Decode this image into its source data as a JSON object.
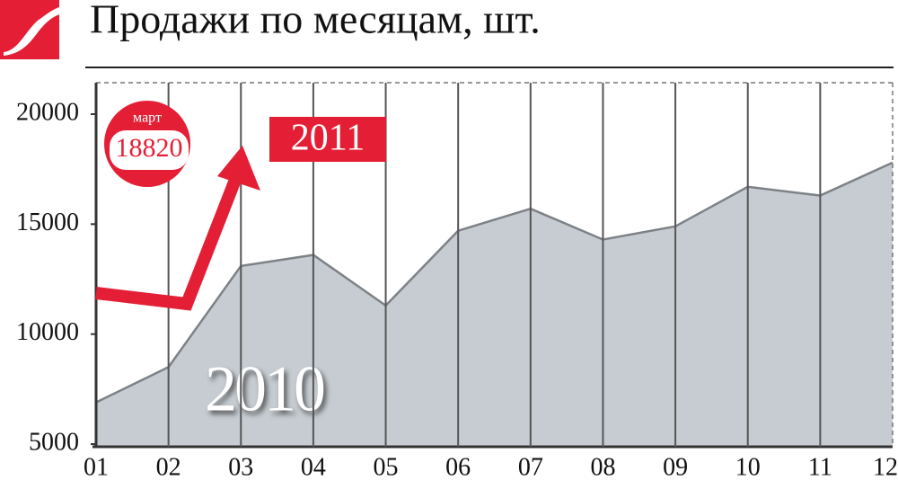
{
  "chart_data": {
    "type": "area",
    "title": "Продажи по месяцам, шт.",
    "categories": [
      "01",
      "02",
      "03",
      "04",
      "05",
      "06",
      "07",
      "08",
      "09",
      "10",
      "11",
      "12"
    ],
    "series": [
      {
        "name": "2010",
        "color": "#c6ccd1",
        "values": [
          6900,
          8500,
          13100,
          13600,
          11300,
          14700,
          15700,
          14300,
          14900,
          16700,
          16300,
          17800
        ]
      }
    ],
    "ylim": [
      4880,
      21430
    ],
    "yticks": [
      5000,
      10000,
      15000,
      20000
    ],
    "grid": true,
    "callout_label": "март",
    "callout_value": 18820,
    "annotation": "2011"
  }
}
